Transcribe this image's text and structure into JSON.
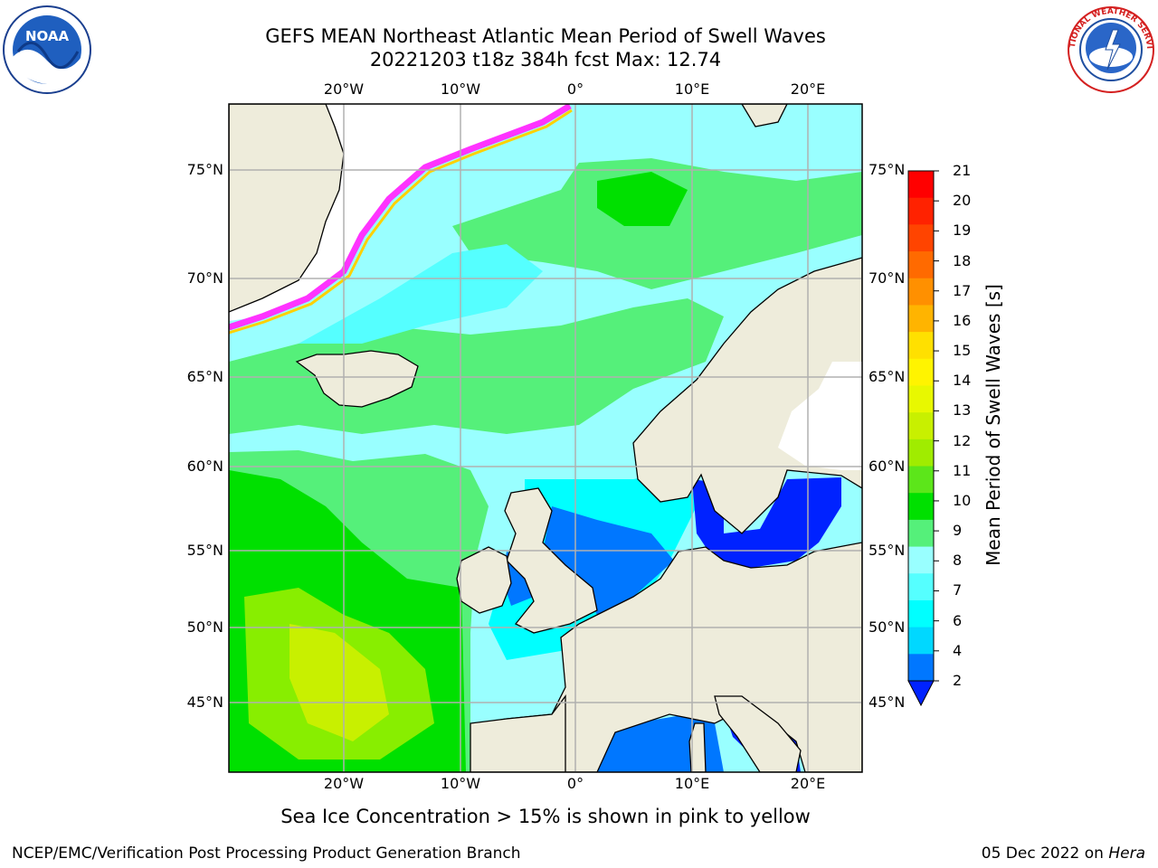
{
  "title_line1": "GEFS MEAN Northeast Atlantic Mean Period of Swell Waves",
  "title_line2": "20221203 t18z 384h fcst   Max: 12.74",
  "lat_labels": [
    "75°N",
    "70°N",
    "65°N",
    "60°N",
    "55°N",
    "50°N",
    "45°N"
  ],
  "lon_labels": [
    "20°W",
    "10°W",
    "0°",
    "10°E",
    "20°E"
  ],
  "colorbar": {
    "label": "Mean Period of Swell Waves [s]",
    "ticks": [
      "21",
      "20",
      "19",
      "18",
      "17",
      "16",
      "15",
      "14",
      "13",
      "12",
      "11",
      "10",
      "9",
      "8",
      "7",
      "6",
      "4",
      "2"
    ],
    "colors": [
      "#ff0000",
      "#ff2200",
      "#ff4400",
      "#ff6a00",
      "#ff9000",
      "#ffb400",
      "#ffe000",
      "#fff400",
      "#e8f800",
      "#c8f000",
      "#a0ec00",
      "#5ce61a",
      "#00e000",
      "#55f07a",
      "#99ffff",
      "#55ffff",
      "#00ffff",
      "#00d8ff",
      "#0077ff",
      "#0022ff"
    ]
  },
  "footnote": "Sea Ice Concentration > 15% is shown in pink to yellow",
  "footer_left": "NCEP/EMC/Verification Post Processing Product Generation Branch",
  "footer_date": "05 Dec 2022 on",
  "footer_machine": "Hera",
  "logos": {
    "left": "NOAA",
    "right": "NATIONAL WEATHER SERVICE"
  },
  "colors": {
    "land": "#eeecdb",
    "grid": "#b0b0b0"
  }
}
